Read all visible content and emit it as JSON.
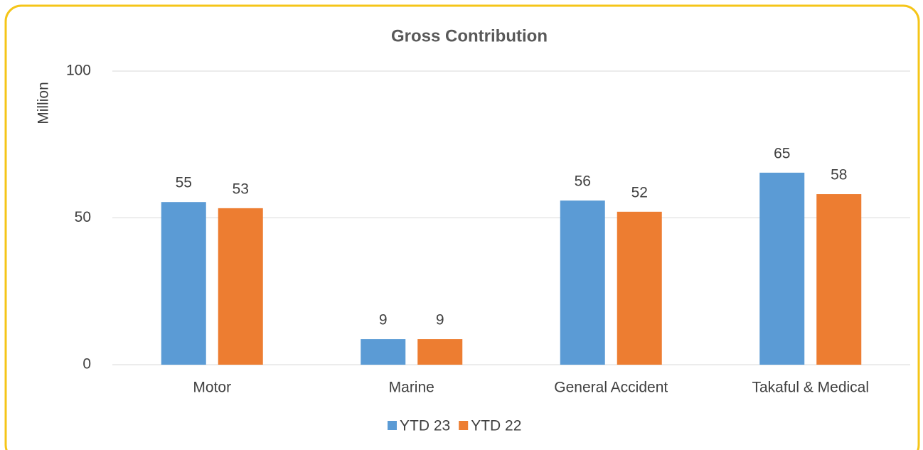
{
  "chart_data": {
    "type": "bar",
    "title": "Gross Contribution",
    "y_label": "Million",
    "categories": [
      "Motor",
      "Marine",
      "General Accident",
      "Takaful & Medical"
    ],
    "series": [
      {
        "name": "YTD 23",
        "color": "#5b9bd5",
        "values": [
          55.4,
          8.7,
          55.9,
          65.4
        ],
        "value_labels": [
          "55",
          "9",
          "56",
          "65"
        ]
      },
      {
        "name": "YTD 22",
        "color": "#ed7d31",
        "values": [
          53.3,
          8.7,
          52.1,
          58.1
        ],
        "value_labels": [
          "53",
          "9",
          "52",
          "58"
        ]
      }
    ],
    "ylim": [
      0,
      100
    ],
    "yticks": [
      0,
      50,
      100
    ],
    "grid": true,
    "legend": "bottom"
  }
}
